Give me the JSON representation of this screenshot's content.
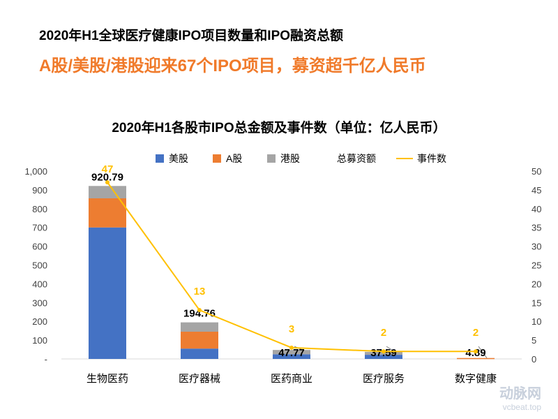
{
  "header": {
    "title": "2020年H1全球医疗健康IPO项目数量和IPO融资总额",
    "subtitle": "A股/美股/港股迎来67个IPO项目，募资超千亿人民币"
  },
  "colors": {
    "us": "#4472c4",
    "a": "#ed7d31",
    "hk": "#a5a5a5",
    "line": "#ffc000",
    "subtitle": "#f07a2a"
  },
  "watermark": {
    "brand": "动脉网",
    "site": "vcbeat.top"
  },
  "chart_data": {
    "type": "bar",
    "title": "2020年H1各股市IPO总金额及事件数（单位：亿人民币）",
    "categories": [
      "生物医药",
      "医疗器械",
      "医药商业",
      "医疗服务",
      "数字健康"
    ],
    "series": [
      {
        "name": "美股",
        "values": [
          700,
          55,
          25,
          22,
          0
        ]
      },
      {
        "name": "A股",
        "values": [
          155,
          90,
          0,
          0,
          4.89
        ]
      },
      {
        "name": "港股",
        "values": [
          65.79,
          49.76,
          22.77,
          15.59,
          0
        ]
      }
    ],
    "totals_label": "总募资额",
    "totals": [
      "920.79",
      "194.76",
      "47.77",
      "37.59",
      "4.89"
    ],
    "line_series": {
      "name": "事件数",
      "values": [
        47,
        13,
        3,
        2,
        2
      ]
    },
    "y_left": {
      "ticks": [
        "-",
        "100",
        "200",
        "300",
        "400",
        "500",
        "600",
        "700",
        "800",
        "900",
        "1,000"
      ],
      "range": [
        0,
        1000
      ]
    },
    "y_right": {
      "ticks": [
        "0",
        "5",
        "10",
        "15",
        "20",
        "25",
        "30",
        "35",
        "40",
        "45",
        "50"
      ],
      "range": [
        0,
        50
      ]
    },
    "legend": [
      "美股",
      "A股",
      "港股",
      "总募资额",
      "事件数"
    ],
    "legend_position": "top"
  }
}
